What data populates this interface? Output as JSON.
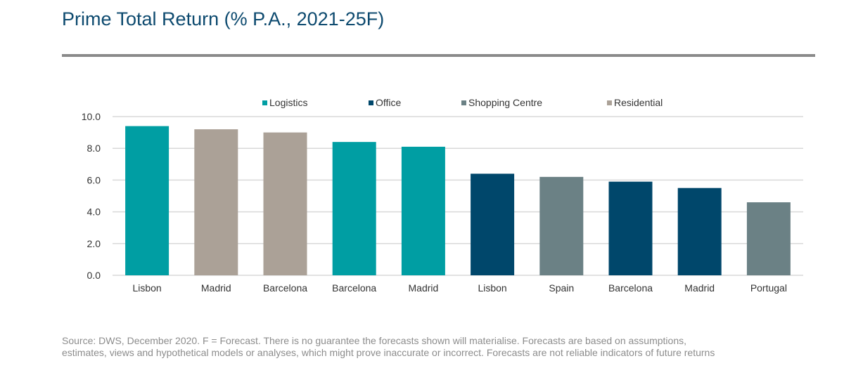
{
  "title": "Prime Total Return (% P.A., 2021-25F)",
  "footer": {
    "line1": "Source: DWS, December 2020. F = Forecast. There is no guarantee the forecasts shown will materialise. Forecasts are based on assumptions,",
    "line2": "estimates, views and hypothetical models or analyses, which might prove inaccurate or incorrect. Forecasts are not reliable indicators of future returns"
  },
  "chart_data": {
    "type": "bar",
    "title": "Prime Total Return (% P.A., 2021-25F)",
    "xlabel": "",
    "ylabel": "",
    "ylim": [
      0,
      10
    ],
    "yticks": [
      "0.0",
      "2.0",
      "4.0",
      "6.0",
      "8.0",
      "10.0"
    ],
    "grid": true,
    "legend_position": "top",
    "legend": [
      {
        "name": "Logistics",
        "color": "#009ea3"
      },
      {
        "name": "Office",
        "color": "#00476b"
      },
      {
        "name": "Shopping Centre",
        "color": "#6b8185"
      },
      {
        "name": "Residential",
        "color": "#aba197"
      }
    ],
    "categories": [
      "Lisbon",
      "Madrid",
      "Barcelona",
      "Barcelona",
      "Madrid",
      "Lisbon",
      "Spain",
      "Barcelona",
      "Madrid",
      "Portugal"
    ],
    "values": [
      9.4,
      9.2,
      9.0,
      8.4,
      8.1,
      6.4,
      6.2,
      5.9,
      5.5,
      4.6
    ],
    "sectors": [
      "Logistics",
      "Residential",
      "Residential",
      "Logistics",
      "Logistics",
      "Office",
      "Shopping Centre",
      "Office",
      "Office",
      "Shopping Centre"
    ]
  }
}
